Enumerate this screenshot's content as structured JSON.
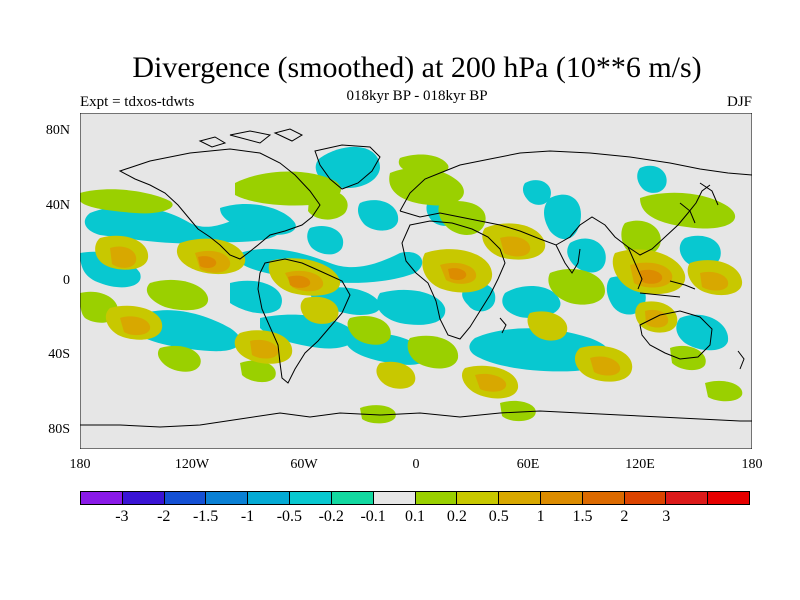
{
  "title": "Divergence (smoothed) at 200 hPa (10**6 m/s)",
  "subtitle": "018kyr BP - 018kyr BP",
  "expt": "Expt = tdxos-tdwts",
  "season": "DJF",
  "lat_labels": [
    "80N",
    "40N",
    "0",
    "40S",
    "80S"
  ],
  "lon_labels": [
    "180",
    "120W",
    "60W",
    "0",
    "60E",
    "120E",
    "180"
  ],
  "colorbar": {
    "colors": [
      "#8a1ae8",
      "#3a14d4",
      "#1450d4",
      "#0a80d4",
      "#04aad4",
      "#08c8d0",
      "#12d8a0",
      "#e6e6e6",
      "#9ad000",
      "#c8c800",
      "#d8a800",
      "#dc8c00",
      "#dc6a00",
      "#dc4400",
      "#dc1a1a",
      "#e60000"
    ],
    "labels": [
      "-3",
      "-2",
      "-1.5",
      "-1",
      "-0.5",
      "-0.2",
      "-0.1",
      "0.1",
      "0.2",
      "0.5",
      "1",
      "1.5",
      "2",
      "3"
    ]
  }
}
